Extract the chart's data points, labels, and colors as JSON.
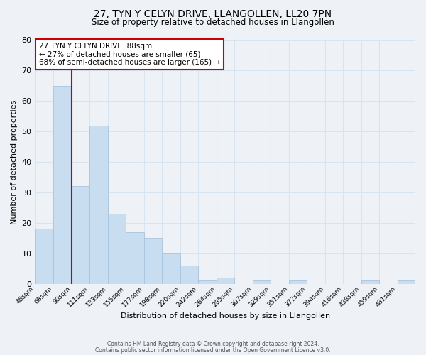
{
  "title": "27, TYN Y CELYN DRIVE, LLANGOLLEN, LL20 7PN",
  "subtitle": "Size of property relative to detached houses in Llangollen",
  "xlabel": "Distribution of detached houses by size in Llangollen",
  "ylabel": "Number of detached properties",
  "bin_labels": [
    "46sqm",
    "68sqm",
    "90sqm",
    "111sqm",
    "133sqm",
    "155sqm",
    "177sqm",
    "198sqm",
    "220sqm",
    "242sqm",
    "264sqm",
    "285sqm",
    "307sqm",
    "329sqm",
    "351sqm",
    "372sqm",
    "394sqm",
    "416sqm",
    "438sqm",
    "459sqm",
    "481sqm"
  ],
  "bar_heights": [
    18,
    65,
    32,
    52,
    23,
    17,
    15,
    10,
    6,
    1,
    2,
    0,
    1,
    0,
    1,
    0,
    0,
    0,
    1,
    0,
    1
  ],
  "bar_color": "#c8ddf0",
  "bar_edge_color": "#a8c4de",
  "property_line_color": "#cc0000",
  "ylim": [
    0,
    80
  ],
  "yticks": [
    0,
    10,
    20,
    30,
    40,
    50,
    60,
    70,
    80
  ],
  "annotation_title": "27 TYN Y CELYN DRIVE: 88sqm",
  "annotation_line1": "← 27% of detached houses are smaller (65)",
  "annotation_line2": "68% of semi-detached houses are larger (165) →",
  "footer_line1": "Contains HM Land Registry data © Crown copyright and database right 2024.",
  "footer_line2": "Contains public sector information licensed under the Open Government Licence v3.0.",
  "background_color": "#eef2f7",
  "grid_color": "#d8e4f0",
  "annotation_box_edge": "#cc0000",
  "title_fontsize": 10,
  "subtitle_fontsize": 8.5
}
